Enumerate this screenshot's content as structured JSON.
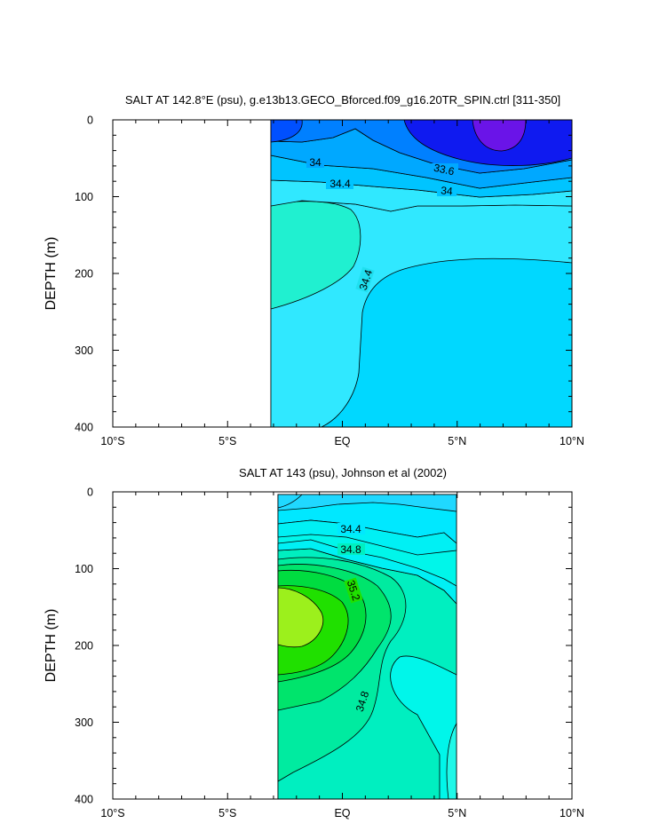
{
  "chart_data": [
    {
      "type": "contour",
      "title": "SALT AT 142.8°E (psu), g.e13b13.GECO_Bforced.f09_g16.20TR_SPIN.ctrl [311-350]",
      "ylabel": "DEPTH (m)",
      "xlabel": "",
      "xlim": [
        -10,
        10
      ],
      "ylim": [
        400,
        0
      ],
      "y_inverted": true,
      "data_extent_x": [
        -3.2,
        10
      ],
      "xticks": [
        {
          "value": -10,
          "label": "10°S"
        },
        {
          "value": -5,
          "label": "5°S"
        },
        {
          "value": 0,
          "label": "EQ"
        },
        {
          "value": 5,
          "label": "5°N"
        },
        {
          "value": 10,
          "label": "10°N"
        }
      ],
      "yticks": [
        {
          "value": 0,
          "label": "0"
        },
        {
          "value": 100,
          "label": "100"
        },
        {
          "value": 200,
          "label": "200"
        },
        {
          "value": 300,
          "label": "300"
        },
        {
          "value": 400,
          "label": "400"
        }
      ],
      "contour_labels": [
        {
          "text": "34",
          "x": -1.1,
          "y": 53
        },
        {
          "text": "33.6",
          "x": 4.5,
          "y": 63
        },
        {
          "text": "34",
          "x": 4.6,
          "y": 90
        },
        {
          "text": "34.4",
          "x": -0.1,
          "y": 82
        },
        {
          "text": "34.4",
          "x": 1.0,
          "y": 215
        }
      ],
      "regions": [
        {
          "range": "34.4-34.6",
          "color": "#00d8ff",
          "x": [
            -3.2,
            10
          ],
          "y": [
            0,
            400
          ]
        },
        {
          "range": "34.2-34.4",
          "color": "#30e8ff",
          "x": [
            -3.2,
            10
          ],
          "y": [
            70,
            400
          ]
        },
        {
          "range": "34.6-34.8",
          "color": "#20f0d0",
          "x": [
            -3.2,
            0.8
          ],
          "y": [
            110,
            245
          ]
        },
        {
          "range": "34.0-34.2",
          "color": "#00c4ff",
          "x": [
            -3.2,
            10
          ],
          "y": [
            40,
            110
          ]
        },
        {
          "range": "33.8-34.0",
          "color": "#00a8ff",
          "x": [
            -3.2,
            10
          ],
          "y": [
            0,
            100
          ]
        },
        {
          "range": "33.6-33.8",
          "color": "#0080ff",
          "x": [
            -3.2,
            10
          ],
          "y": [
            0,
            80
          ]
        },
        {
          "range": "33.4-33.6",
          "color": "#0050ff",
          "x": [
            -3.2,
            0.5
          ],
          "y": [
            0,
            30
          ]
        },
        {
          "range": "33.0-33.4",
          "color": "#0f1af0",
          "x": [
            3.8,
            10
          ],
          "y": [
            0,
            60
          ]
        },
        {
          "range": "<33.0",
          "color": "#6a14e8",
          "x": [
            5.8,
            8.2
          ],
          "y": [
            0,
            35
          ]
        }
      ]
    },
    {
      "type": "contour",
      "title": "SALT AT 143 (psu), Johnson et al (2002)",
      "ylabel": "DEPTH (m)",
      "xlabel": "",
      "xlim": [
        -10,
        10
      ],
      "ylim": [
        400,
        0
      ],
      "y_inverted": true,
      "data_extent_x": [
        -2.7,
        5
      ],
      "xticks": [
        {
          "value": -10,
          "label": "10°S"
        },
        {
          "value": -5,
          "label": "5°S"
        },
        {
          "value": 0,
          "label": "EQ"
        },
        {
          "value": 5,
          "label": "5°N"
        },
        {
          "value": 10,
          "label": "10°N"
        }
      ],
      "yticks": [
        {
          "value": 0,
          "label": "0"
        },
        {
          "value": 100,
          "label": "100"
        },
        {
          "value": 200,
          "label": "200"
        },
        {
          "value": 300,
          "label": "300"
        },
        {
          "value": 400,
          "label": "400"
        }
      ],
      "contour_labels": [
        {
          "text": "34.4",
          "x": 0.4,
          "y": 48
        },
        {
          "text": "34.8",
          "x": 0.4,
          "y": 77
        },
        {
          "text": "35.2",
          "x": 0.5,
          "y": 150
        },
        {
          "text": "34.8",
          "x": 0.8,
          "y": 275
        }
      ],
      "regions": [
        {
          "range": "34.6-34.7",
          "color": "#00f6ea",
          "x": [
            -2.7,
            5
          ],
          "y": [
            0,
            400
          ]
        },
        {
          "range": "34.8-34.9",
          "color": "#00efc0",
          "x": [
            -2.7,
            3
          ],
          "y": [
            70,
            400
          ]
        },
        {
          "range": "34.9-35.0",
          "color": "#00eba0",
          "x": [
            -2.7,
            2.2
          ],
          "y": [
            75,
            320
          ]
        },
        {
          "range": "35.0-35.1",
          "color": "#00e46c",
          "x": [
            -2.7,
            1.5
          ],
          "y": [
            80,
            260
          ]
        },
        {
          "range": "35.1-35.2",
          "color": "#00dc40",
          "x": [
            -2.7,
            0.8
          ],
          "y": [
            85,
            245
          ]
        },
        {
          "range": "35.2-35.3",
          "color": "#20e000",
          "x": [
            -2.7,
            0.2
          ],
          "y": [
            95,
            230
          ]
        },
        {
          "range": ">35.3",
          "color": "#9cf01c",
          "x": [
            -2.7,
            -0.9
          ],
          "y": [
            125,
            200
          ]
        },
        {
          "range": "34.3-34.5",
          "color": "#00e8ff",
          "x": [
            -2.7,
            5
          ],
          "y": [
            0,
            60
          ]
        },
        {
          "range": "34.5-34.6",
          "color": "#00f0f4",
          "x": [
            -2.7,
            5
          ],
          "y": [
            0,
            70
          ]
        },
        {
          "range": "34.6-34.7 deep",
          "color": "#20f8e8",
          "x": [
            -2.7,
            5
          ],
          "y": [
            200,
            400
          ]
        },
        {
          "range": "34.1-34.3",
          "color": "#20d8ff",
          "x": [
            -2.7,
            5
          ],
          "y": [
            0,
            30
          ]
        }
      ]
    }
  ]
}
